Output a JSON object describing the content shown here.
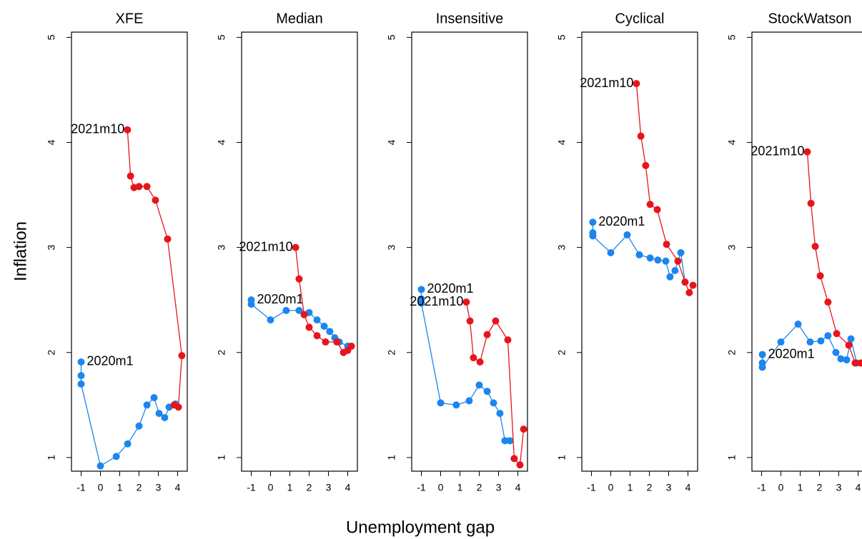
{
  "y_axis_label": "Inflation",
  "x_axis_label": "Unemployment gap",
  "chart_data": [
    {
      "type": "line",
      "title": "XFE",
      "xlim": [
        -1.5,
        4.5
      ],
      "ylim": [
        0.87,
        5.05
      ],
      "xticks": [
        -1,
        0,
        1,
        2,
        3,
        4
      ],
      "yticks": [
        1,
        2,
        3,
        4,
        5
      ],
      "series": [
        {
          "name": "2020m1",
          "color": "#1c86ee",
          "label_position": "right",
          "x": [
            -1,
            -1,
            -1,
            0,
            0.82,
            1.41,
            2.0,
            2.41,
            2.78,
            3.04,
            3.33,
            3.56,
            3.89
          ],
          "values": [
            1.91,
            1.78,
            1.7,
            0.92,
            1.01,
            1.13,
            1.3,
            1.5,
            1.57,
            1.42,
            1.38,
            1.48,
            1.51
          ]
        },
        {
          "name": "2021m10",
          "color": "#e8141c",
          "label_position": "left",
          "x": [
            1.4,
            1.56,
            1.74,
            2.0,
            2.41,
            2.85,
            3.48,
            4.22,
            4.04,
            3.82
          ],
          "values": [
            4.12,
            3.68,
            3.57,
            3.58,
            3.58,
            3.45,
            3.08,
            1.97,
            1.48,
            1.5
          ]
        }
      ]
    },
    {
      "type": "line",
      "title": "Median",
      "xlim": [
        -1.5,
        4.5
      ],
      "ylim": [
        0.87,
        5.05
      ],
      "xticks": [
        -1,
        0,
        1,
        2,
        3,
        4
      ],
      "yticks": [
        1,
        2,
        3,
        4,
        5
      ],
      "series": [
        {
          "name": "2020m1",
          "color": "#1c86ee",
          "label_position": "right",
          "x": [
            -1,
            -1,
            0,
            0.81,
            1.48,
            2.0,
            2.41,
            2.78,
            3.07,
            3.33,
            3.56,
            4.0
          ],
          "values": [
            2.5,
            2.46,
            2.31,
            2.4,
            2.4,
            2.38,
            2.31,
            2.25,
            2.2,
            2.14,
            2.1,
            2.06
          ]
        },
        {
          "name": "2021m10",
          "color": "#e8141c",
          "label_position": "left",
          "x": [
            1.3,
            1.48,
            1.74,
            2.0,
            2.41,
            2.85,
            3.44,
            3.78,
            4.0,
            4.19
          ],
          "values": [
            3.0,
            2.7,
            2.36,
            2.24,
            2.16,
            2.1,
            2.1,
            2.0,
            2.02,
            2.06
          ]
        }
      ]
    },
    {
      "type": "line",
      "title": "Insensitive",
      "xlim": [
        -1.5,
        4.5
      ],
      "ylim": [
        0.87,
        5.05
      ],
      "xticks": [
        -1,
        0,
        1,
        2,
        3,
        4
      ],
      "yticks": [
        1,
        2,
        3,
        4,
        5
      ],
      "series": [
        {
          "name": "2020m1",
          "color": "#1c86ee",
          "label_position": "right",
          "x": [
            -1,
            -1,
            -1,
            0,
            0.81,
            1.48,
            2.0,
            2.41,
            2.74,
            3.07,
            3.33,
            3.59
          ],
          "values": [
            2.6,
            2.51,
            2.47,
            1.52,
            1.5,
            1.54,
            1.69,
            1.63,
            1.52,
            1.42,
            1.16,
            1.16
          ]
        },
        {
          "name": "2021m10",
          "color": "#e8141c",
          "label_position": "left",
          "x": [
            1.33,
            1.52,
            1.7,
            2.04,
            2.41,
            2.85,
            3.48,
            3.81,
            4.11,
            4.3
          ],
          "values": [
            2.48,
            2.3,
            1.95,
            1.91,
            2.17,
            2.3,
            2.12,
            0.99,
            0.93,
            1.27
          ]
        }
      ]
    },
    {
      "type": "line",
      "title": "Cyclical",
      "xlim": [
        -1.5,
        4.5
      ],
      "ylim": [
        0.87,
        5.05
      ],
      "xticks": [
        -1,
        0,
        1,
        2,
        3,
        4
      ],
      "yticks": [
        1,
        2,
        3,
        4,
        5
      ],
      "series": [
        {
          "name": "2020m1",
          "color": "#1c86ee",
          "label_position": "right",
          "x": [
            -0.93,
            -0.93,
            -0.93,
            0,
            0.85,
            1.48,
            2.04,
            2.44,
            2.85,
            3.07,
            3.33,
            3.63,
            3.85
          ],
          "values": [
            3.24,
            3.14,
            3.11,
            2.95,
            3.12,
            2.93,
            2.9,
            2.88,
            2.87,
            2.72,
            2.78,
            2.95,
            2.67
          ]
        },
        {
          "name": "2021m10",
          "color": "#e8141c",
          "label_position": "left",
          "x": [
            1.33,
            1.56,
            1.81,
            2.04,
            2.41,
            2.89,
            3.48,
            3.85,
            4.07,
            4.26
          ],
          "values": [
            4.56,
            4.06,
            3.78,
            3.41,
            3.36,
            3.03,
            2.87,
            2.67,
            2.57,
            2.64
          ]
        }
      ]
    },
    {
      "type": "line",
      "title": "StockWatson",
      "xlim": [
        -1.5,
        4.5
      ],
      "ylim": [
        0.87,
        5.05
      ],
      "xticks": [
        -1,
        0,
        1,
        2,
        3,
        4
      ],
      "yticks": [
        1,
        2,
        3,
        4,
        5
      ],
      "series": [
        {
          "name": "2020m1",
          "color": "#1c86ee",
          "label_position": "right",
          "x": [
            -0.96,
            -0.96,
            -0.96,
            0,
            0.89,
            1.52,
            2.07,
            2.44,
            2.85,
            3.11,
            3.41,
            3.63,
            3.93
          ],
          "values": [
            1.98,
            1.9,
            1.86,
            2.1,
            2.27,
            2.1,
            2.11,
            2.16,
            2.0,
            1.94,
            1.93,
            2.13,
            1.9
          ]
        },
        {
          "name": "2021m10",
          "color": "#e8141c",
          "label_position": "left",
          "x": [
            1.37,
            1.56,
            1.78,
            2.04,
            2.44,
            2.89,
            3.52,
            3.85,
            4.15
          ],
          "values": [
            3.91,
            3.42,
            3.01,
            2.73,
            2.48,
            2.18,
            2.07,
            1.9,
            1.9
          ]
        }
      ]
    }
  ]
}
